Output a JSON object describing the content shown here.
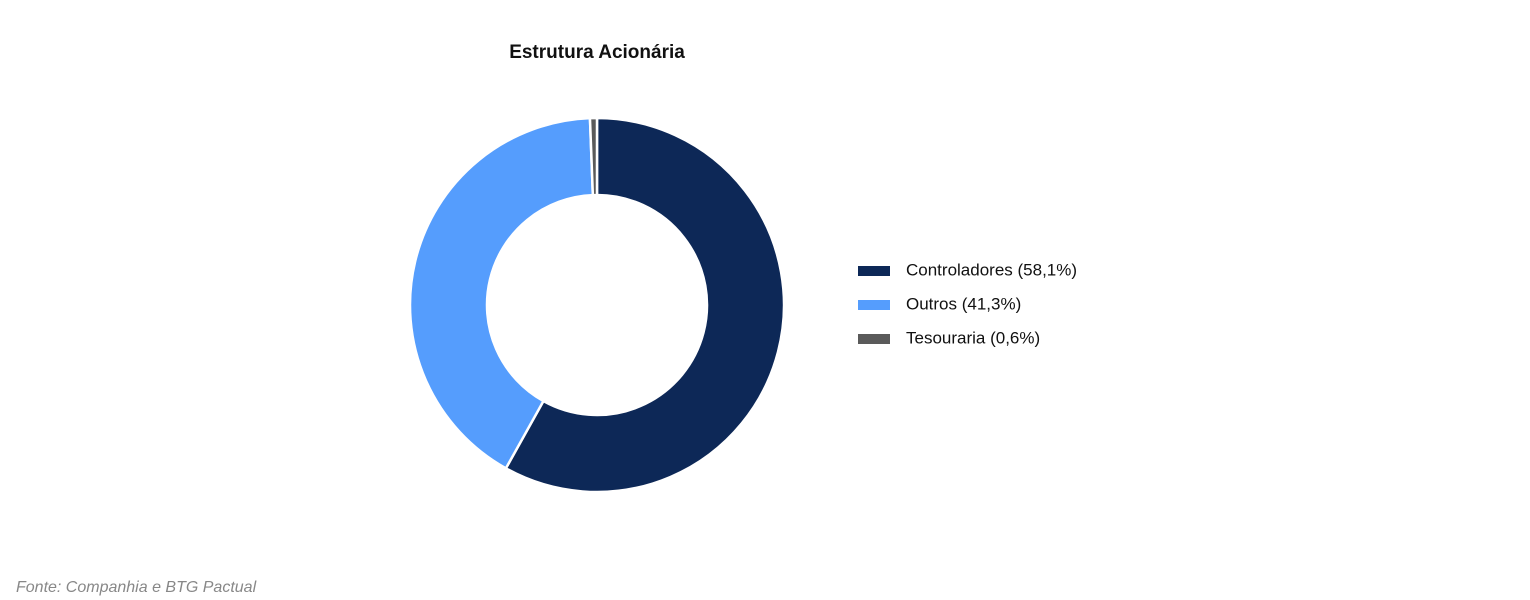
{
  "chart_data": {
    "type": "pie",
    "title": "Estrutura Acionária",
    "categories": [
      "Controladores (58,1%)",
      "Outros (41,3%)",
      "Tesouraria (0,6%)"
    ],
    "values": [
      58.1,
      41.3,
      0.6
    ],
    "colors": [
      "#0d2857",
      "#559dfd",
      "#5a5a5a"
    ],
    "legend": "right",
    "source": "Fonte: Companhia e BTG Pactual"
  }
}
